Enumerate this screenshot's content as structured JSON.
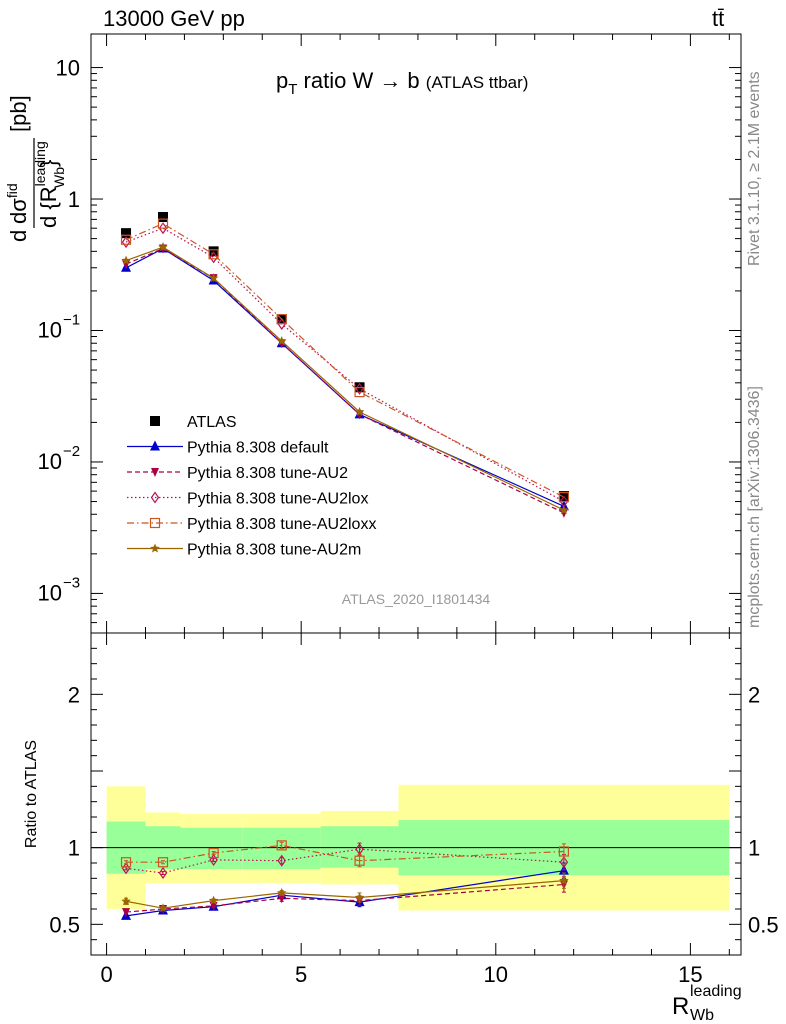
{
  "header": {
    "left": "13000 GeV pp",
    "right": "tt̄"
  },
  "side_labels": {
    "upper": "Rivet 3.1.10, ≥ 2.1M events",
    "lower": "mcplots.cern.ch [arXiv:1306.3436]"
  },
  "chart_data": {
    "type": "scatter",
    "title": "p_T ratio W → b (ATLAS ttbar)",
    "title_main": "p",
    "title_sub": "T",
    "title_rest": " ratio W → b ",
    "title_small": "(ATLAS ttbar)",
    "analysis_id": "ATLAS_2020_I1801434",
    "xlabel": "R_Wb^leading",
    "ylabel": "d σ^fid / d {R_Wb^leading} [pb]",
    "ylabel_parts": {
      "prefix": "d",
      "num": "dσ",
      "num_sup": "fid",
      "den": "d {R",
      "den_sup": "leading",
      "den_sub": "Wb",
      "den_end": "}",
      "unit": "[pb]"
    },
    "ratio_ylabel": "Ratio to ATLAS",
    "xlim": [
      -0.4,
      16.3
    ],
    "ylim_main": [
      0.0005,
      18
    ],
    "ylim_ratio": [
      0.3,
      2.4
    ],
    "y_scale_main": "log",
    "legend_position": "middle-left",
    "x_ticks": [
      "0",
      "5",
      "10",
      "15"
    ],
    "y_ticks_main": [
      {
        "base": "10",
        "exp": ""
      },
      {
        "base": "1",
        "exp": ""
      },
      {
        "base": "10",
        "exp": "−1"
      },
      {
        "base": "10",
        "exp": "−2"
      },
      {
        "base": "10",
        "exp": "−3"
      }
    ],
    "y_ticks_ratio": [
      "2",
      "1",
      "0.5"
    ],
    "x": [
      0.5,
      1.45,
      2.75,
      4.5,
      6.5,
      11.75
    ],
    "bin_edges": [
      0,
      1,
      1.9,
      3.5,
      5.5,
      7.5,
      16
    ],
    "band_inner": [
      [
        0.83,
        1.17
      ],
      [
        0.86,
        1.14
      ],
      [
        0.86,
        1.13
      ],
      [
        0.86,
        1.13
      ],
      [
        0.87,
        1.14
      ],
      [
        0.82,
        1.18
      ]
    ],
    "band_outer": [
      [
        0.6,
        1.4
      ],
      [
        0.77,
        1.23
      ],
      [
        0.77,
        1.22
      ],
      [
        0.77,
        1.22
      ],
      [
        0.76,
        1.24
      ],
      [
        0.59,
        1.41
      ]
    ],
    "series": [
      {
        "name": "ATLAS",
        "color": "#000000",
        "marker": "square-filled",
        "line": "none",
        "values": [
          0.55,
          0.73,
          0.4,
          0.122,
          0.037,
          0.0055
        ],
        "ratio": [
          1,
          1,
          1,
          1,
          1,
          1
        ],
        "ratio_err": [
          0,
          0,
          0,
          0,
          0,
          0
        ]
      },
      {
        "name": "Pythia 8.308 default",
        "color": "#0000cc",
        "marker": "triangle-up-filled",
        "line": "solid",
        "values": [
          0.3,
          0.42,
          0.24,
          0.08,
          0.023,
          0.0046
        ],
        "ratio": [
          0.555,
          0.59,
          0.615,
          0.69,
          0.645,
          0.85
        ],
        "ratio_err": [
          0.01,
          0.01,
          0.01,
          0.015,
          0.03,
          0.05
        ]
      },
      {
        "name": "Pythia 8.308 tune-AU2",
        "color": "#aa0044",
        "marker": "triangle-down-filled",
        "line": "dashed",
        "values": [
          0.32,
          0.42,
          0.25,
          0.08,
          0.023,
          0.0041
        ],
        "ratio": [
          0.58,
          0.6,
          0.62,
          0.67,
          0.655,
          0.76
        ],
        "ratio_err": [
          0.01,
          0.01,
          0.01,
          0.02,
          0.03,
          0.05
        ]
      },
      {
        "name": "Pythia 8.308 tune-AU2lox",
        "color": "#bb1155",
        "marker": "diamond-open",
        "line": "dotted",
        "values": [
          0.47,
          0.6,
          0.36,
          0.112,
          0.036,
          0.005
        ],
        "ratio": [
          0.865,
          0.835,
          0.92,
          0.915,
          0.99,
          0.905
        ],
        "ratio_err": [
          0.01,
          0.01,
          0.01,
          0.02,
          0.04,
          0.05
        ]
      },
      {
        "name": "Pythia 8.308 tune-AU2loxx",
        "color": "#cc5522",
        "marker": "square-open",
        "line": "dashdot",
        "values": [
          0.49,
          0.65,
          0.38,
          0.122,
          0.034,
          0.0054
        ],
        "ratio": [
          0.905,
          0.905,
          0.965,
          1.015,
          0.915,
          0.975
        ],
        "ratio_err": [
          0.01,
          0.01,
          0.01,
          0.02,
          0.04,
          0.05
        ]
      },
      {
        "name": "Pythia 8.308 tune-AU2m",
        "color": "#996600",
        "marker": "star-filled",
        "line": "solid",
        "values": [
          0.34,
          0.43,
          0.25,
          0.083,
          0.024,
          0.0043
        ],
        "ratio": [
          0.65,
          0.605,
          0.655,
          0.705,
          0.675,
          0.785
        ],
        "ratio_err": [
          0.02,
          0.01,
          0.01,
          0.015,
          0.03,
          0.05
        ]
      }
    ]
  }
}
